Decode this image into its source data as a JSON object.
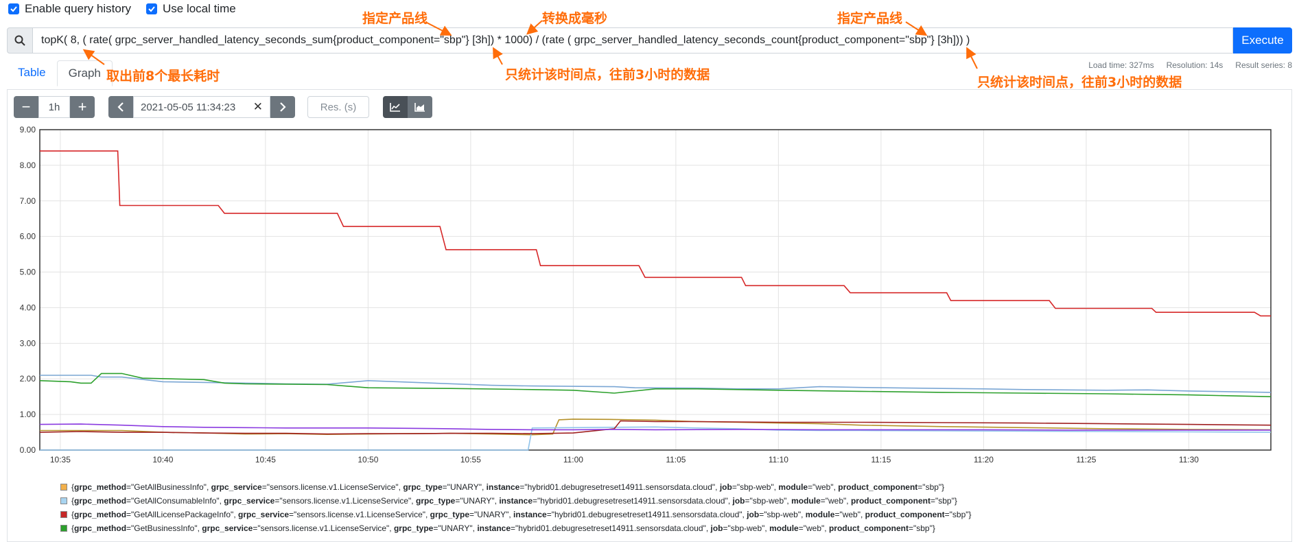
{
  "options": {
    "history_label": "Enable query history",
    "localtime_label": "Use local time"
  },
  "query": {
    "expression": "topK( 8, ( rate( grpc_server_handled_latency_seconds_sum{product_component=\"sbp\"} [3h]) * 1000) /  (rate ( grpc_server_handled_latency_seconds_count{product_component=\"sbp\"} [3h])) )",
    "execute_label": "Execute"
  },
  "stats": {
    "load_time": "Load time: 327ms",
    "resolution": "Resolution: 14s",
    "result_series": "Result series: 8"
  },
  "tabs": {
    "table": "Table",
    "graph": "Graph"
  },
  "controls": {
    "range": "1h",
    "end_time": "2021-05-05 11:34:23",
    "resolution_placeholder": "Res. (s)"
  },
  "annotations": {
    "product_line_1": "指定产品线",
    "to_ms": "转换成毫秒",
    "product_line_2": "指定产品线",
    "top8": "取出前8个最长耗时",
    "window_1": "只统计该时间点，往前3小时的数据",
    "window_2": "只统计该时间点，往前3小时的数据"
  },
  "chart_data": {
    "type": "line",
    "ylim": [
      0,
      9
    ],
    "yticks": [
      "0.00",
      "1.00",
      "2.00",
      "3.00",
      "4.00",
      "5.00",
      "6.00",
      "7.00",
      "8.00",
      "9.00"
    ],
    "xlim": [
      "10:34",
      "11:34"
    ],
    "xticks": [
      "10:35",
      "10:40",
      "10:45",
      "10:50",
      "10:55",
      "11:00",
      "11:05",
      "11:10",
      "11:15",
      "11:20",
      "11:25",
      "11:30"
    ],
    "series": [
      {
        "color": "#d62728",
        "x": [
          0,
          3.8,
          3.9,
          8.7,
          9,
          14.5,
          14.8,
          19.5,
          19.8,
          24.2,
          24.4,
          29.2,
          29.5,
          34.2,
          34.4,
          39.2,
          39.5,
          44.2,
          44.4,
          49.2,
          49.5,
          54.2,
          54.4,
          59.2,
          59.5,
          60
        ],
        "values": [
          8.4,
          8.4,
          6.87,
          6.87,
          6.65,
          6.65,
          6.28,
          6.28,
          5.63,
          5.63,
          5.18,
          5.18,
          4.85,
          4.85,
          4.62,
          4.62,
          4.42,
          4.42,
          4.2,
          4.2,
          3.98,
          3.98,
          3.87,
          3.87,
          3.77,
          3.77
        ]
      },
      {
        "color": "#7aa6d4",
        "x": [
          0,
          2.5,
          3,
          4,
          6,
          10,
          12,
          14,
          16,
          22,
          24,
          28,
          29,
          32,
          34,
          36,
          38,
          40,
          44,
          46,
          48,
          52,
          54,
          56,
          58,
          60
        ],
        "values": [
          2.1,
          2.1,
          2.05,
          2.05,
          1.92,
          1.88,
          1.86,
          1.85,
          1.95,
          1.82,
          1.8,
          1.78,
          1.75,
          1.74,
          1.72,
          1.72,
          1.78,
          1.76,
          1.73,
          1.72,
          1.7,
          1.68,
          1.69,
          1.66,
          1.64,
          1.62
        ]
      },
      {
        "color": "#2ca02c",
        "x": [
          0,
          1.5,
          2,
          2.5,
          3,
          4,
          5,
          8,
          9,
          10,
          14,
          16,
          20,
          24,
          26,
          28,
          30,
          32,
          36,
          40,
          44,
          48,
          52,
          56,
          60
        ],
        "values": [
          1.95,
          1.92,
          1.88,
          1.88,
          2.15,
          2.15,
          2.02,
          1.98,
          1.88,
          1.86,
          1.84,
          1.75,
          1.73,
          1.7,
          1.68,
          1.6,
          1.72,
          1.72,
          1.68,
          1.65,
          1.62,
          1.6,
          1.58,
          1.55,
          1.5
        ]
      },
      {
        "color": "#b5912a",
        "x": [
          0,
          2,
          4,
          6,
          8,
          10,
          12,
          14,
          16,
          18,
          20,
          22,
          24,
          25,
          25.3,
          26,
          28,
          30,
          32,
          34,
          36,
          38,
          40,
          44,
          48,
          52,
          56,
          60
        ],
        "values": [
          0.55,
          0.55,
          0.55,
          0.5,
          0.48,
          0.45,
          0.46,
          0.44,
          0.45,
          0.46,
          0.47,
          0.45,
          0.43,
          0.45,
          0.85,
          0.87,
          0.86,
          0.84,
          0.8,
          0.78,
          0.76,
          0.74,
          0.7,
          0.66,
          0.63,
          0.6,
          0.58,
          0.57
        ]
      },
      {
        "color": "#8fc3ea",
        "x": [
          0,
          5,
          10,
          15,
          20,
          23.8,
          24,
          26,
          28,
          30,
          32,
          34,
          36,
          38,
          40,
          44,
          48,
          52,
          56,
          60
        ],
        "values": [
          0,
          0,
          0,
          0,
          0,
          0,
          0.62,
          0.63,
          0.64,
          0.65,
          0.62,
          0.6,
          0.56,
          0.55,
          0.55,
          0.54,
          0.53,
          0.52,
          0.51,
          0.5
        ]
      },
      {
        "color": "#a02020",
        "x": [
          0,
          2,
          4,
          6,
          8,
          10,
          12,
          14,
          16,
          18,
          20,
          22,
          24,
          26,
          28,
          28.3,
          30,
          32,
          36,
          40,
          44,
          48,
          52,
          56,
          60
        ],
        "values": [
          0.5,
          0.52,
          0.5,
          0.5,
          0.48,
          0.47,
          0.47,
          0.45,
          0.46,
          0.46,
          0.47,
          0.47,
          0.46,
          0.48,
          0.6,
          0.82,
          0.8,
          0.8,
          0.78,
          0.78,
          0.77,
          0.76,
          0.74,
          0.72,
          0.7
        ]
      },
      {
        "color": "#8a3ae0",
        "x": [
          0,
          2,
          4,
          6,
          8,
          10,
          12,
          14,
          16,
          18,
          20,
          22,
          24,
          26,
          28,
          30,
          34,
          38,
          42,
          46,
          50,
          54,
          58,
          60
        ],
        "values": [
          0.72,
          0.73,
          0.7,
          0.66,
          0.64,
          0.63,
          0.62,
          0.62,
          0.62,
          0.61,
          0.6,
          0.58,
          0.57,
          0.57,
          0.58,
          0.57,
          0.58,
          0.57,
          0.57,
          0.57,
          0.56,
          0.56,
          0.56,
          0.56
        ]
      }
    ],
    "legend": [
      {
        "color": "#f2b04b",
        "method": "GetAllBusinessInfo",
        "service": "sensors.license.v1.LicenseService"
      },
      {
        "color": "#a8d4f0",
        "method": "GetAllConsumableInfo",
        "service": "sensors.license.v1.LicenseService"
      },
      {
        "color": "#c62828",
        "method": "GetAllLicensePackageInfo",
        "service": "sensors.license.v1.LicenseService"
      },
      {
        "color": "#2ca02c",
        "method": "GetBusinessInfo",
        "service": "sensors.license.v1.LicenseService"
      }
    ],
    "legend_common": {
      "grpc_type": "UNARY",
      "instance": "hybrid01.debugresetreset14911.sensorsdata.cloud",
      "job": "sbp-web",
      "module": "web",
      "product_component": "sbp"
    }
  }
}
